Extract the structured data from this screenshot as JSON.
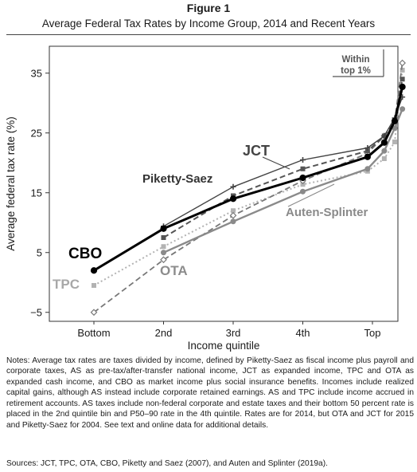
{
  "figure": {
    "label": "Figure 1",
    "title": "Average Federal Tax Rates by Income Group, 2014 and Recent Years",
    "notes": "Notes: Average tax rates are taxes divided by income, defined by Piketty-Saez as fiscal income plus payroll and corporate taxes, AS as pre-tax/after-transfer national income, JCT as expanded income, TPC and OTA as expanded cash income, and CBO as market income plus social insurance benefits. Incomes include realized capital gains, although AS instead include corporate retained earnings. AS and TPC include income accrued in retirement accounts. AS taxes include non-federal corporate and estate taxes and their bottom 50 percent rate is placed in the 2nd quintile bin and P50–90 rate in the 4th quintile. Rates are for 2014, but OTA and JCT for 2015 and Piketty-Saez for 2004. See text and online data for additional details.",
    "sources": "Sources: JCT, TPC, OTA, CBO, Piketty and Saez (2007), and Auten and Splinter (2019a)."
  },
  "chart_data": {
    "type": "line",
    "xlabel": "Income quintile",
    "ylabel": "Average federal tax rate (%)",
    "categories": [
      "Bottom",
      "2nd",
      "3rd",
      "4th",
      "Top"
    ],
    "yticks": [
      -5,
      5,
      15,
      25,
      35
    ],
    "ylim": [
      -6.5,
      39.5
    ],
    "top1_annotation": "Within top 1%",
    "series": [
      {
        "name": "CBO",
        "color": "#000000",
        "style": "solid",
        "width": 3,
        "marker": "circle",
        "marker_fill": "#000000",
        "x": [
          0,
          1,
          2,
          3,
          3.93,
          4.17,
          4.32,
          4.43
        ],
        "y": [
          2.0,
          9.0,
          14.0,
          17.5,
          21.0,
          23.4,
          27.0,
          32.7
        ]
      },
      {
        "name": "Piketty-Saez",
        "color": "#444444",
        "style": "solid",
        "width": 1.4,
        "marker": "plus",
        "marker_fill": "#444444",
        "x": [
          1,
          2,
          3,
          3.93,
          4.17,
          4.32,
          4.43
        ],
        "y": [
          9.4,
          16.0,
          20.5,
          22.5,
          24.5,
          27.5,
          31.0
        ]
      },
      {
        "name": "JCT",
        "color": "#555555",
        "style": "dashed",
        "width": 2,
        "marker": "square",
        "marker_fill": "#555555",
        "x": [
          1,
          2,
          3,
          3.93,
          4.17,
          4.32,
          4.43
        ],
        "y": [
          7.5,
          14.5,
          19.0,
          22.0,
          24.5,
          27.0,
          34.0
        ]
      },
      {
        "name": "Auten-Splinter",
        "color": "#8a8a8a",
        "style": "solid",
        "width": 2.4,
        "marker": "circle",
        "marker_fill": "#8a8a8a",
        "x": [
          1,
          2,
          3,
          3.93,
          4.17,
          4.32,
          4.43
        ],
        "y": [
          5.0,
          10.2,
          15.2,
          19.0,
          22.0,
          25.8,
          29.0
        ]
      },
      {
        "name": "OTA",
        "color": "#777777",
        "style": "dashed",
        "width": 1.8,
        "marker": "diamond_open",
        "marker_fill": "#ffffff",
        "x": [
          0,
          1,
          2,
          3,
          3.93,
          4.17,
          4.32,
          4.43
        ],
        "y": [
          -5.0,
          3.8,
          11.2,
          17.0,
          21.6,
          24.5,
          27.0,
          36.7
        ]
      },
      {
        "name": "TPC",
        "color": "#b3b3b3",
        "style": "dotted",
        "width": 2,
        "marker": "square",
        "marker_fill": "#b3b3b3",
        "x": [
          0,
          1,
          2,
          3,
          3.93,
          4.17,
          4.32,
          4.43
        ],
        "y": [
          -0.5,
          6.0,
          12.0,
          16.4,
          18.6,
          20.7,
          23.5,
          35.5
        ]
      }
    ]
  }
}
